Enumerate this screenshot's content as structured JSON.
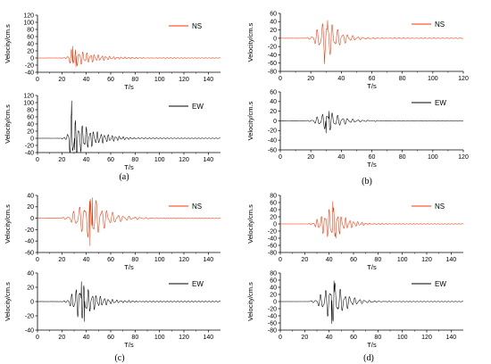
{
  "figure": {
    "panel_labels": [
      "(a)",
      "(b)",
      "(c)",
      "(d)"
    ]
  },
  "chart_data": [
    {
      "type": "line",
      "panel": "a",
      "subplot": "top",
      "series": [
        {
          "name": "NS",
          "color": "#ff3000"
        }
      ],
      "xlabel": "T/s",
      "ylabel": "Velocity/cm.s",
      "xlim": [
        0,
        150
      ],
      "ylim": [
        -40,
        120
      ],
      "xticks": [
        0,
        20,
        40,
        60,
        80,
        100,
        120,
        140
      ],
      "yticks": [
        -40,
        -20,
        0,
        20,
        40,
        60,
        80,
        100,
        120
      ],
      "onset": 24,
      "peak_time": 29,
      "peak": 33,
      "trough": -25,
      "decay": 18,
      "freq": 0.32,
      "legend_position": "upper-right"
    },
    {
      "type": "line",
      "panel": "a",
      "subplot": "bottom",
      "series": [
        {
          "name": "EW",
          "color": "#000000"
        }
      ],
      "xlabel": "T/s",
      "ylabel": "Velocity/cm.s",
      "xlim": [
        0,
        150
      ],
      "ylim": [
        -40,
        120
      ],
      "xticks": [
        0,
        20,
        40,
        60,
        80,
        100,
        120,
        140
      ],
      "yticks": [
        -40,
        -20,
        0,
        20,
        40,
        60,
        80,
        100,
        120
      ],
      "onset": 24,
      "peak_time": 28,
      "peak": 105,
      "trough": -32,
      "decay": 16,
      "freq": 0.33,
      "legend_position": "upper-right"
    },
    {
      "type": "line",
      "panel": "b",
      "subplot": "top",
      "series": [
        {
          "name": "NS",
          "color": "#ff3000"
        }
      ],
      "xlabel": "T/s",
      "ylabel": "Velocity/cm.s",
      "xlim": [
        0,
        120
      ],
      "ylim": [
        -80,
        60
      ],
      "xticks": [
        0,
        20,
        40,
        60,
        80,
        100,
        120
      ],
      "yticks": [
        -80,
        -60,
        -40,
        -20,
        0,
        20,
        40,
        60
      ],
      "onset": 20,
      "peak_time": 31,
      "peak": 43,
      "trough": -62,
      "decay": 8,
      "freq": 0.3,
      "legend_position": "upper-right"
    },
    {
      "type": "line",
      "panel": "b",
      "subplot": "bottom",
      "series": [
        {
          "name": "EW",
          "color": "#000000"
        }
      ],
      "xlabel": "T/s",
      "ylabel": "Velocity/cm.s",
      "xlim": [
        0,
        120
      ],
      "ylim": [
        -60,
        60
      ],
      "xticks": [
        0,
        20,
        40,
        60,
        80,
        100,
        120
      ],
      "yticks": [
        -60,
        -40,
        -20,
        0,
        20,
        40,
        60
      ],
      "onset": 20,
      "peak_time": 32,
      "peak": 20,
      "trough": -25,
      "decay": 9,
      "freq": 0.3,
      "legend_position": "upper-right"
    },
    {
      "type": "line",
      "panel": "c",
      "subplot": "top",
      "series": [
        {
          "name": "NS",
          "color": "#ff3000"
        }
      ],
      "xlabel": "T/s",
      "ylabel": "Velocity/cm.s",
      "xlim": [
        0,
        150
      ],
      "ylim": [
        -60,
        40
      ],
      "xticks": [
        0,
        20,
        40,
        60,
        80,
        100,
        120,
        140
      ],
      "yticks": [
        -60,
        -40,
        -20,
        0,
        20,
        40
      ],
      "onset": 24,
      "peak_time": 45,
      "peak": 36,
      "trough": -48,
      "decay": 12,
      "freq": 0.22,
      "legend_position": "upper-right"
    },
    {
      "type": "line",
      "panel": "c",
      "subplot": "bottom",
      "series": [
        {
          "name": "EW",
          "color": "#000000"
        }
      ],
      "xlabel": "T/s",
      "ylabel": "Velocity/cm.s",
      "xlim": [
        0,
        150
      ],
      "ylim": [
        -40,
        40
      ],
      "xticks": [
        0,
        20,
        40,
        60,
        80,
        100,
        120,
        140
      ],
      "yticks": [
        -40,
        -20,
        0,
        20,
        40
      ],
      "onset": 24,
      "peak_time": 36,
      "peak": 28,
      "trough": -28,
      "decay": 12,
      "freq": 0.3,
      "legend_position": "upper-right"
    },
    {
      "type": "line",
      "panel": "d",
      "subplot": "top",
      "series": [
        {
          "name": "NS",
          "color": "#ff3000"
        }
      ],
      "xlabel": "T/s",
      "ylabel": "Velocity/cm.s",
      "xlim": [
        0,
        150
      ],
      "ylim": [
        -80,
        80
      ],
      "xticks": [
        0,
        20,
        40,
        60,
        80,
        100,
        120,
        140
      ],
      "yticks": [
        -80,
        -60,
        -40,
        -20,
        0,
        20,
        40,
        60,
        80
      ],
      "onset": 26,
      "peak_time": 43,
      "peak": 63,
      "trough": -40,
      "decay": 10,
      "freq": 0.3,
      "legend_position": "upper-right"
    },
    {
      "type": "line",
      "panel": "d",
      "subplot": "bottom",
      "series": [
        {
          "name": "EW",
          "color": "#000000"
        }
      ],
      "xlabel": "T/s",
      "ylabel": "Velocity/cm.s",
      "xlim": [
        0,
        150
      ],
      "ylim": [
        -80,
        80
      ],
      "xticks": [
        0,
        20,
        40,
        60,
        80,
        100,
        120,
        140
      ],
      "yticks": [
        -80,
        -60,
        -40,
        -20,
        0,
        20,
        40,
        60,
        80
      ],
      "onset": 28,
      "peak_time": 44,
      "peak": 58,
      "trough": -62,
      "decay": 10,
      "freq": 0.25,
      "legend_position": "upper-right"
    }
  ]
}
